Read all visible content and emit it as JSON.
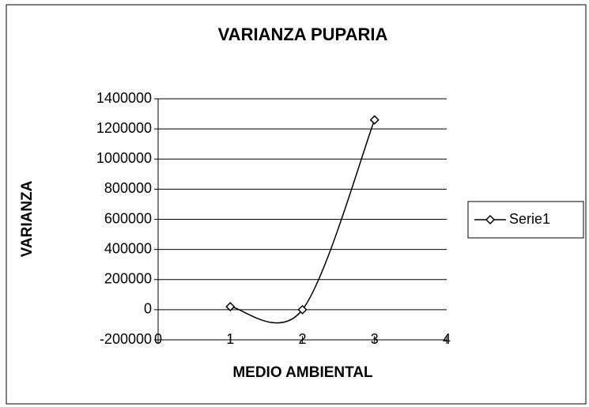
{
  "chart_data": {
    "type": "line",
    "title": "VARIANZA PUPARIA",
    "x_label": "MEDIO AMBIENTAL",
    "y_label": "VARIANZA",
    "x": [
      1,
      2,
      3
    ],
    "series": [
      {
        "name": "Serie1",
        "color": "#000000",
        "values": [
          20000,
          0,
          1260000
        ]
      }
    ],
    "xlim": [
      0,
      4
    ],
    "xticks": [
      0,
      1,
      2,
      3,
      4
    ],
    "ylim": [
      -200000,
      1400000
    ],
    "yticks": [
      -200000,
      0,
      200000,
      400000,
      600000,
      800000,
      1000000,
      1200000,
      1400000
    ],
    "grid": true,
    "smooth": true,
    "marker": "diamond",
    "legend": "right"
  }
}
